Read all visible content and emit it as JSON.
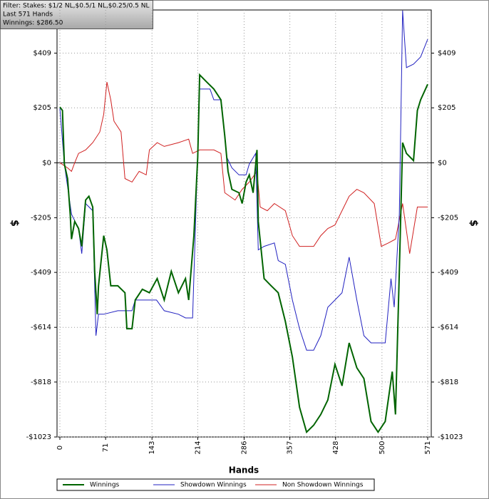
{
  "chart_data": {
    "type": "line",
    "filter": [
      "Filter: Stakes: $1/2 NL,$0.5/1 NL,$0.25/0.5 NL",
      "Last  571 Hands",
      "Winnings: $286.50"
    ],
    "xlabel": "Hands",
    "ylabel": "$",
    "xlim": [
      0,
      571
    ],
    "xticks": [
      0,
      71,
      143,
      214,
      286,
      357,
      428,
      500,
      571
    ],
    "ylim": [
      -1023,
      570
    ],
    "yticks": [
      {
        "value": 409,
        "label": "$409"
      },
      {
        "value": 205,
        "label": "$205"
      },
      {
        "value": 0,
        "label": "$0"
      },
      {
        "value": -205,
        "label": "-$205"
      },
      {
        "value": -409,
        "label": "-$409"
      },
      {
        "value": -614,
        "label": "-$614"
      },
      {
        "value": -818,
        "label": "-$818"
      },
      {
        "value": -1023,
        "label": "-$1023"
      }
    ],
    "grid": true,
    "legend": "bottom",
    "series": [
      {
        "name": "Winnings",
        "color": "#006400",
        "x": [
          0,
          4,
          7,
          12,
          16,
          18,
          23,
          29,
          34,
          40,
          45,
          51,
          54,
          58,
          60,
          68,
          73,
          79,
          90,
          101,
          104,
          112,
          117,
          128,
          139,
          151,
          162,
          173,
          184,
          195,
          200,
          208,
          214,
          217,
          228,
          239,
          250,
          256,
          261,
          267,
          278,
          283,
          289,
          294,
          300,
          306,
          308,
          317,
          328,
          339,
          350,
          361,
          372,
          383,
          394,
          405,
          416,
          427,
          438,
          449,
          461,
          472,
          483,
          494,
          505,
          516,
          521,
          527,
          532,
          538,
          549,
          555,
          560,
          571
        ],
        "values": [
          208,
          195,
          -5,
          -59,
          -192,
          -285,
          -219,
          -245,
          -312,
          -139,
          -125,
          -165,
          -405,
          -565,
          -459,
          -272,
          -325,
          -459,
          -459,
          -485,
          -619,
          -619,
          -512,
          -472,
          -485,
          -432,
          -512,
          -405,
          -485,
          -432,
          -512,
          -272,
          21,
          328,
          301,
          275,
          235,
          101,
          -32,
          -99,
          -112,
          -152,
          -72,
          -45,
          -112,
          48,
          -219,
          -432,
          -459,
          -485,
          -592,
          -725,
          -912,
          -1005,
          -979,
          -939,
          -885,
          -752,
          -832,
          -672,
          -765,
          -805,
          -965,
          -1005,
          -965,
          -779,
          -939,
          -405,
          75,
          35,
          8,
          195,
          235,
          293
        ]
      },
      {
        "name": "Showdown Winnings",
        "color": "#2020c0",
        "x": [
          0,
          7,
          18,
          29,
          34,
          40,
          51,
          56,
          60,
          68,
          90,
          112,
          117,
          150,
          162,
          184,
          195,
          206,
          211,
          217,
          233,
          239,
          250,
          259,
          267,
          278,
          289,
          294,
          304,
          308,
          317,
          333,
          339,
          350,
          361,
          372,
          383,
          394,
          405,
          416,
          427,
          438,
          449,
          461,
          472,
          483,
          494,
          505,
          514,
          519,
          527,
          532,
          538,
          549,
          560,
          571
        ],
        "values": [
          203,
          -5,
          -192,
          -245,
          -339,
          -152,
          -179,
          -645,
          -565,
          -565,
          -552,
          -552,
          -512,
          -512,
          -552,
          -565,
          -579,
          -579,
          -192,
          275,
          275,
          235,
          235,
          21,
          -19,
          -45,
          -45,
          -5,
          35,
          -325,
          -312,
          -299,
          -365,
          -379,
          -512,
          -619,
          -699,
          -699,
          -645,
          -539,
          -512,
          -485,
          -352,
          -512,
          -645,
          -672,
          -672,
          -672,
          -432,
          -539,
          -192,
          568,
          355,
          368,
          395,
          461
        ]
      },
      {
        "name": "Non Showdown Winnings",
        "color": "#d02020",
        "x": [
          0,
          12,
          18,
          23,
          29,
          40,
          51,
          62,
          68,
          73,
          79,
          84,
          95,
          101,
          112,
          123,
          134,
          139,
          151,
          162,
          184,
          200,
          206,
          217,
          239,
          250,
          256,
          272,
          283,
          294,
          306,
          311,
          322,
          333,
          350,
          361,
          372,
          394,
          405,
          416,
          427,
          438,
          449,
          461,
          472,
          488,
          499,
          510,
          521,
          532,
          543,
          555,
          571
        ],
        "values": [
          0,
          -19,
          -32,
          0,
          35,
          48,
          75,
          115,
          181,
          301,
          235,
          155,
          115,
          -59,
          -72,
          -32,
          -45,
          48,
          75,
          61,
          75,
          88,
          35,
          48,
          48,
          35,
          -112,
          -139,
          -99,
          -72,
          -32,
          -165,
          -179,
          -152,
          -179,
          -272,
          -312,
          -312,
          -272,
          -245,
          -232,
          -179,
          -125,
          -99,
          -112,
          -152,
          -312,
          -299,
          -285,
          -152,
          -339,
          -165,
          -165
        ]
      }
    ]
  }
}
